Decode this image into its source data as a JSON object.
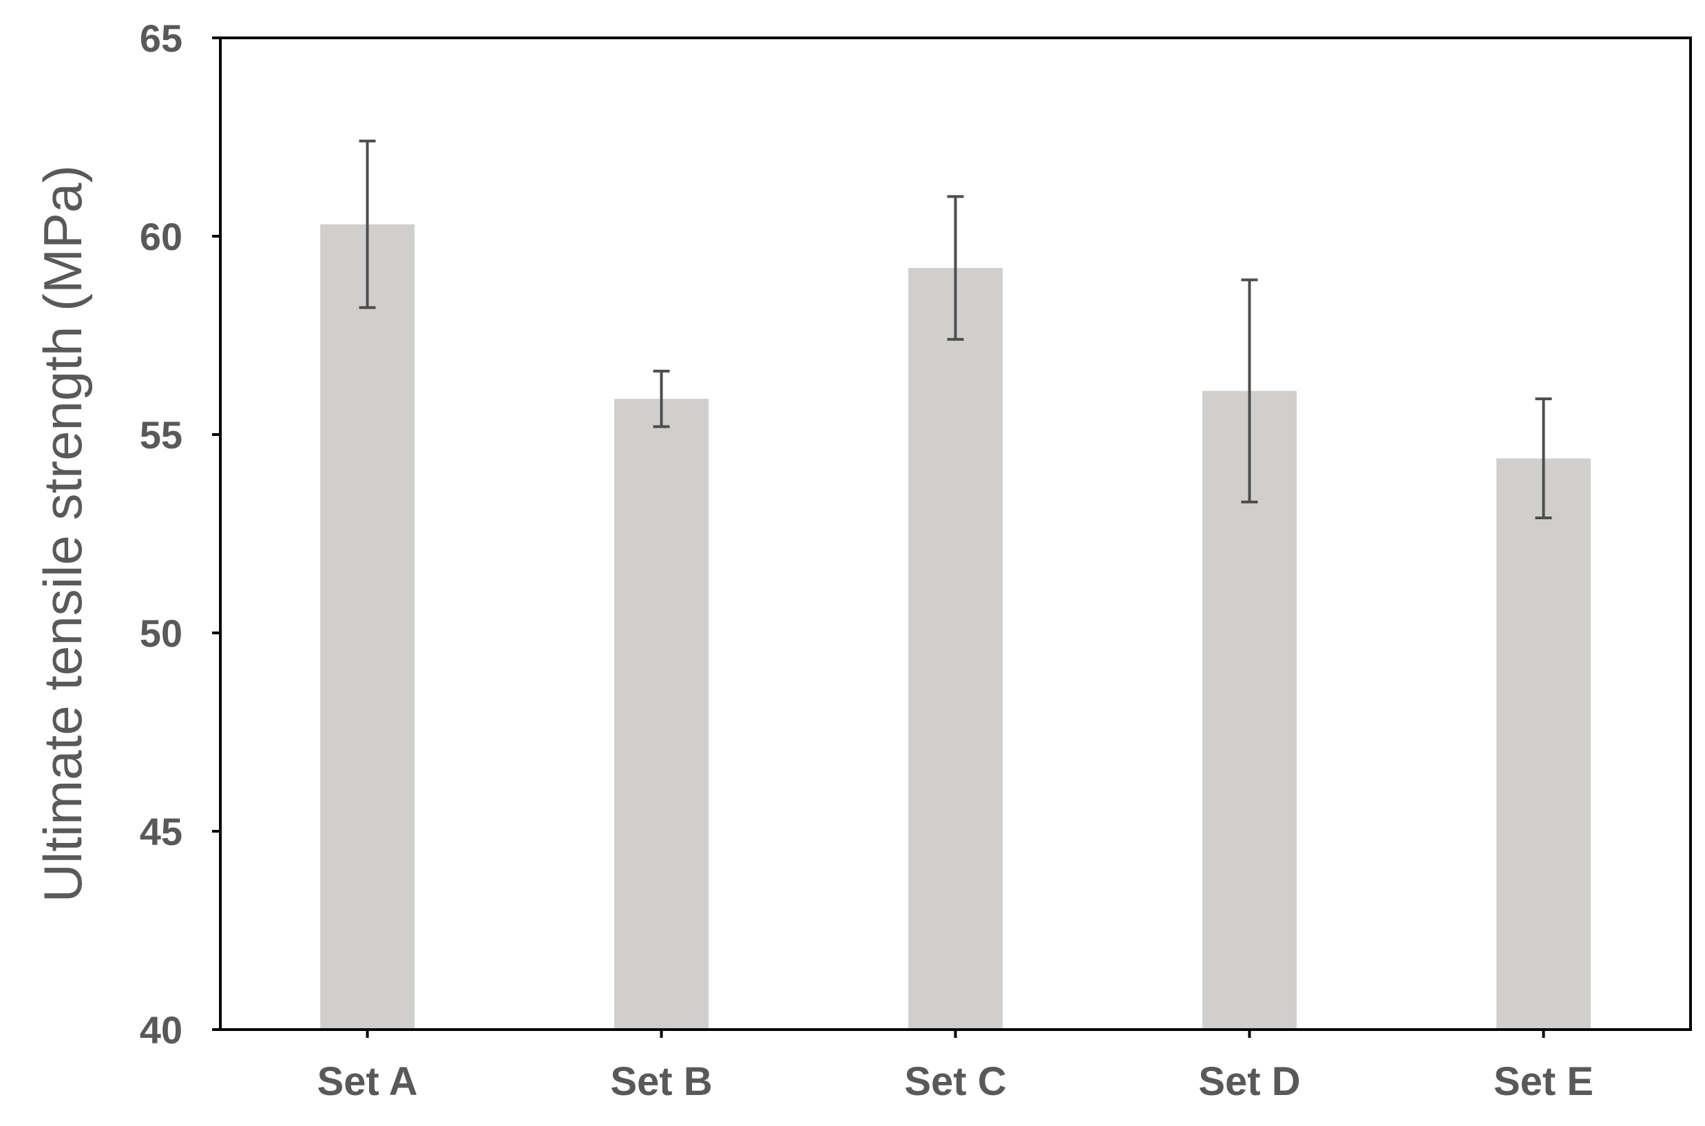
{
  "chart_data": {
    "type": "bar",
    "title": "",
    "xlabel": "",
    "ylabel": "Ultimate tensile strength (MPa)",
    "categories": [
      "Set A",
      "Set B",
      "Set C",
      "Set D",
      "Set E"
    ],
    "values": [
      60.3,
      55.9,
      59.2,
      56.1,
      54.4
    ],
    "error": [
      {
        "low": 58.2,
        "high": 62.4
      },
      {
        "low": 55.2,
        "high": 56.6
      },
      {
        "low": 57.4,
        "high": 61.0
      },
      {
        "low": 53.3,
        "high": 58.9
      },
      {
        "low": 52.9,
        "high": 55.9
      }
    ],
    "ylim": [
      40,
      65
    ],
    "yticks": [
      "40",
      "45",
      "50",
      "55",
      "60",
      "65"
    ],
    "grid": false,
    "legend": "none",
    "colors": {
      "bar": "#d0cfcd",
      "error_bar": "#4d4d4d",
      "axis": "#000000",
      "text": "#595959"
    }
  }
}
